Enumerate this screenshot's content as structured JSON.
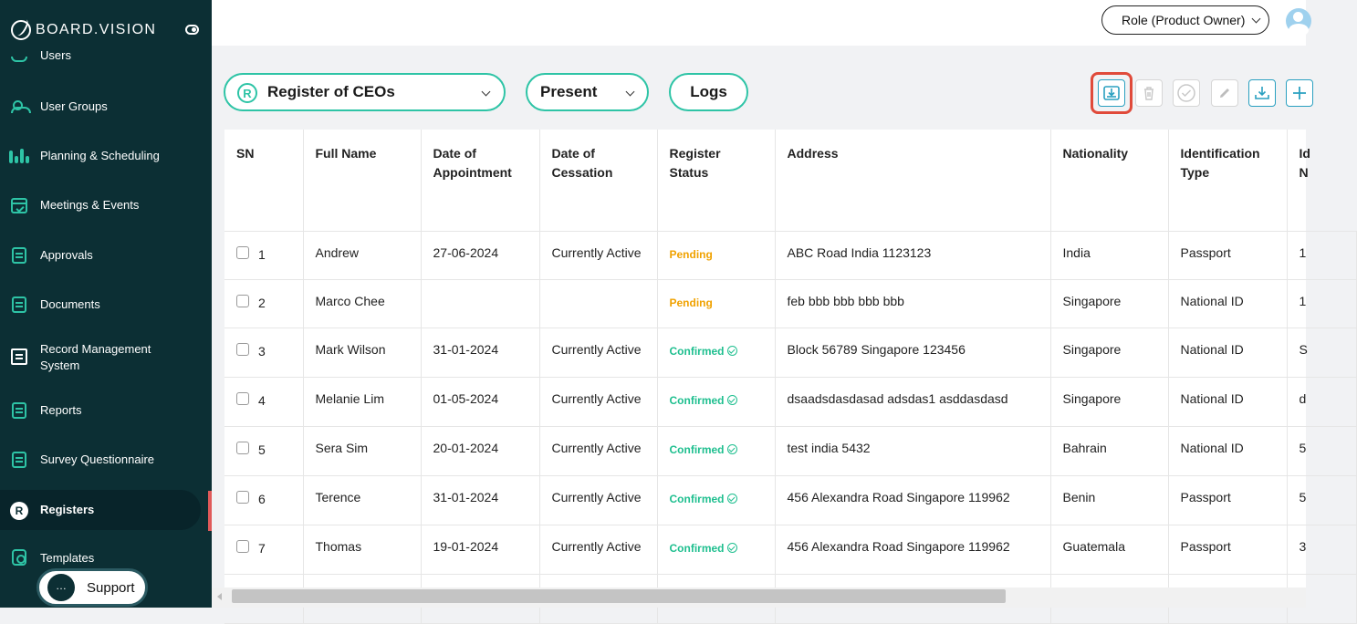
{
  "brand": {
    "name": "BOARD.VISION"
  },
  "sidebar": {
    "partial_item": "Users",
    "items": [
      {
        "label": "User Groups",
        "icon": "user-groups-icon"
      },
      {
        "label": "Planning & Scheduling",
        "icon": "planning-icon"
      },
      {
        "label": "Meetings & Events",
        "icon": "calendar-icon"
      },
      {
        "label": "Approvals",
        "icon": "approvals-icon"
      },
      {
        "label": "Documents",
        "icon": "documents-icon"
      },
      {
        "label_line1": "Record Management",
        "label_line2": "System",
        "icon": "record-management-icon"
      },
      {
        "label": "Reports",
        "icon": "reports-icon"
      },
      {
        "label": "Survey Questionnaire",
        "icon": "survey-icon"
      },
      {
        "label": "Registers",
        "icon": "registers-icon",
        "active": true
      },
      {
        "label": "Templates",
        "icon": "templates-icon"
      }
    ],
    "support_label": "Support"
  },
  "header": {
    "role_label": "Role (Product Owner)"
  },
  "toolbar": {
    "register_select": {
      "badge": "R",
      "label": "Register of CEOs"
    },
    "period_select": {
      "label": "Present"
    },
    "logs_label": "Logs",
    "actions": [
      "import-icon",
      "delete-icon",
      "approve-icon",
      "edit-icon",
      "download-icon",
      "add-icon"
    ]
  },
  "table": {
    "columns": [
      {
        "line1": "SN",
        "line2": ""
      },
      {
        "line1": "Full Name",
        "line2": ""
      },
      {
        "line1": "Date of",
        "line2": "Appointment"
      },
      {
        "line1": "Date of",
        "line2": "Cessation"
      },
      {
        "line1": "Register Status",
        "line2": ""
      },
      {
        "line1": "Address",
        "line2": ""
      },
      {
        "line1": "Nationality",
        "line2": ""
      },
      {
        "line1": "Identification",
        "line2": "Type"
      },
      {
        "line1": "Id",
        "line2": "N"
      }
    ],
    "rows": [
      {
        "sn": "1",
        "name": "Andrew",
        "appointment": "27-06-2024",
        "cessation": "Currently Active",
        "status": "Pending",
        "address": "ABC Road India 1123123",
        "nationality": "India",
        "id_type": "Passport",
        "id_no": "1"
      },
      {
        "sn": "2",
        "name": "Marco Chee",
        "appointment": "",
        "cessation": "",
        "status": "Pending",
        "address": "feb bbb bbb bbb bbb",
        "nationality": "Singapore",
        "id_type": "National ID",
        "id_no": "1"
      },
      {
        "sn": "3",
        "name": "Mark Wilson",
        "appointment": "31-01-2024",
        "cessation": "Currently Active",
        "status": "Confirmed",
        "address": "Block 56789 Singapore 123456",
        "nationality": "Singapore",
        "id_type": "National ID",
        "id_no": "S"
      },
      {
        "sn": "4",
        "name": "Melanie Lim",
        "appointment": "01-05-2024",
        "cessation": "Currently Active",
        "status": "Confirmed",
        "address": "dsaadsdasdasad adsdas1 asddasdasd",
        "nationality": "Singapore",
        "id_type": "National ID",
        "id_no": "d"
      },
      {
        "sn": "5",
        "name": "Sera Sim",
        "appointment": "20-01-2024",
        "cessation": "Currently Active",
        "status": "Confirmed",
        "address": "test india 5432",
        "nationality": "Bahrain",
        "id_type": "National ID",
        "id_no": "5"
      },
      {
        "sn": "6",
        "name": "Terence",
        "appointment": "31-01-2024",
        "cessation": "Currently Active",
        "status": "Confirmed",
        "address": "456 Alexandra Road Singapore 119962",
        "nationality": "Benin",
        "id_type": "Passport",
        "id_no": "5"
      },
      {
        "sn": "7",
        "name": "Thomas",
        "appointment": "19-01-2024",
        "cessation": "Currently Active",
        "status": "Confirmed",
        "address": "456 Alexandra Road Singapore 119962",
        "nationality": "Guatemala",
        "id_type": "Passport",
        "id_no": "3"
      }
    ]
  },
  "colors": {
    "sidebar_bg": "#0c2f34",
    "accent_teal": "#2ec4a6",
    "pending": "#f0a200",
    "confirmed": "#1fbf8f",
    "highlight": "#e04a3a"
  }
}
